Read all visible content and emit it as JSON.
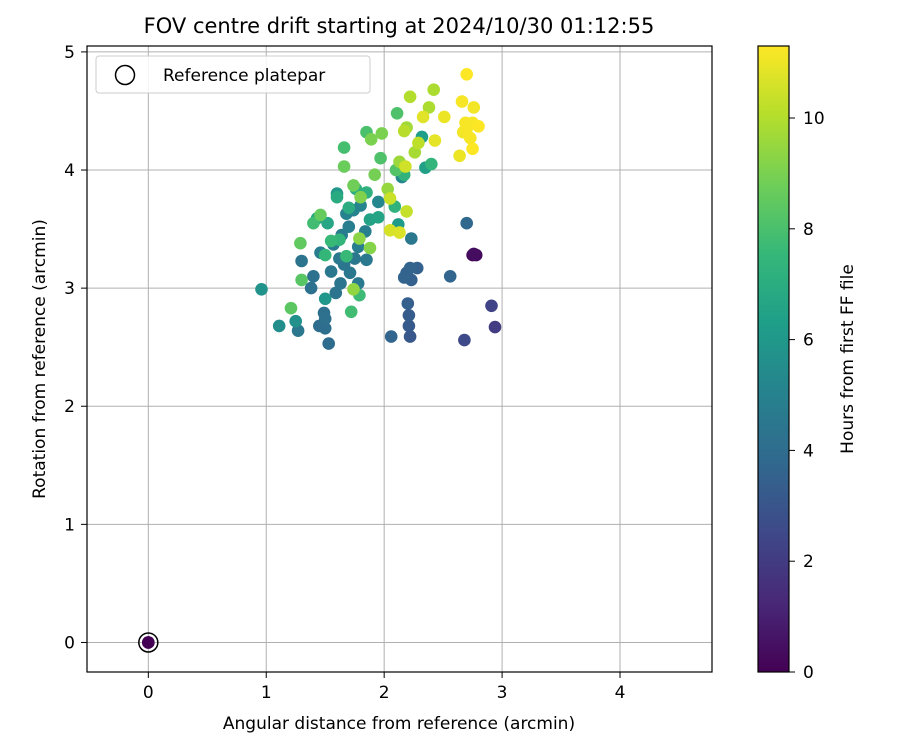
{
  "chart_data": {
    "type": "scatter",
    "title": "FOV centre drift starting at 2024/10/30 01:12:55",
    "xlabel": "Angular distance from reference (arcmin)",
    "ylabel": "Rotation from reference (arcmin)",
    "xlim": [
      -0.52,
      4.78
    ],
    "ylim": [
      -0.25,
      5.05
    ],
    "xticks": [
      0,
      1,
      2,
      3,
      4
    ],
    "yticks": [
      0,
      1,
      2,
      3,
      4,
      5
    ],
    "grid": true,
    "legend": {
      "position": "top-left",
      "entries": [
        "Reference platepar"
      ]
    },
    "colorbar": {
      "label": "Hours from first FF file",
      "colormap": "viridis",
      "range": [
        0,
        11.3
      ],
      "ticks": [
        0,
        2,
        4,
        6,
        8,
        10
      ],
      "colors": [
        "#440154",
        "#482878",
        "#3e4989",
        "#31688e",
        "#26828e",
        "#1f9e89",
        "#35b779",
        "#6ece58",
        "#b5de2b",
        "#fde725"
      ]
    },
    "reference_point": {
      "x": 0,
      "y": 0,
      "t": 0
    },
    "series": [
      {
        "points": [
          [
            0,
            0,
            0
          ],
          [
            2.75,
            3.28,
            0.2
          ],
          [
            2.78,
            3.28,
            0.3
          ],
          [
            2.76,
            3.29,
            0.4
          ],
          [
            2.94,
            2.67,
            2.0
          ],
          [
            2.91,
            2.85,
            2.3
          ],
          [
            2.68,
            2.56,
            2.5
          ],
          [
            2.22,
            2.59,
            3.1
          ],
          [
            2.21,
            2.68,
            3.2
          ],
          [
            2.21,
            2.77,
            3.3
          ],
          [
            2.2,
            2.87,
            3.4
          ],
          [
            2.23,
            3.07,
            3.5
          ],
          [
            2.19,
            3.13,
            3.5
          ],
          [
            2.28,
            3.17,
            3.5
          ],
          [
            2.22,
            3.17,
            3.6
          ],
          [
            2.17,
            3.09,
            3.6
          ],
          [
            2.56,
            3.1,
            3.7
          ],
          [
            2.7,
            3.55,
            3.8
          ],
          [
            2.06,
            2.59,
            3.7
          ],
          [
            2.23,
            3.42,
            4.5
          ],
          [
            1.53,
            2.53,
            4.0
          ],
          [
            1.5,
            2.66,
            4.1
          ],
          [
            1.38,
            3.0,
            4.2
          ],
          [
            1.3,
            3.23,
            4.3
          ],
          [
            1.4,
            3.1,
            4.2
          ],
          [
            1.45,
            2.68,
            4.0
          ],
          [
            1.49,
            2.79,
            4.1
          ],
          [
            1.5,
            2.74,
            4.2
          ],
          [
            1.59,
            2.96,
            4.3
          ],
          [
            1.63,
            3.04,
            4.4
          ],
          [
            1.71,
            3.13,
            4.5
          ],
          [
            1.78,
            3.04,
            4.6
          ],
          [
            1.66,
            3.2,
            4.4
          ],
          [
            1.75,
            3.25,
            4.5
          ],
          [
            1.85,
            3.24,
            4.6
          ],
          [
            1.57,
            3.37,
            4.7
          ],
          [
            1.64,
            3.45,
            4.7
          ],
          [
            1.7,
            3.52,
            4.8
          ],
          [
            1.78,
            3.35,
            4.8
          ],
          [
            1.84,
            3.48,
            4.9
          ],
          [
            1.55,
            3.14,
            4.5
          ],
          [
            1.46,
            3.3,
            4.8
          ],
          [
            1.62,
            3.25,
            4.6
          ],
          [
            1.68,
            3.63,
            5.0
          ],
          [
            1.74,
            3.66,
            5.1
          ],
          [
            1.8,
            3.7,
            5.1
          ],
          [
            1.95,
            3.73,
            5.2
          ],
          [
            2.15,
            3.94,
            5.3
          ],
          [
            1.27,
            2.64,
            4.5
          ],
          [
            1.11,
            2.68,
            5.5
          ],
          [
            0.96,
            2.99,
            5.8
          ],
          [
            1.25,
            2.72,
            5.7
          ],
          [
            1.5,
            2.91,
            5.9
          ],
          [
            1.6,
            3.8,
            6.0
          ],
          [
            2.32,
            4.28,
            6.3
          ],
          [
            2.35,
            4.02,
            6.4
          ],
          [
            2.12,
            3.54,
            6.2
          ],
          [
            1.88,
            3.58,
            6.5
          ],
          [
            1.95,
            3.6,
            6.6
          ],
          [
            1.52,
            3.55,
            6.7
          ],
          [
            1.43,
            3.59,
            6.8
          ],
          [
            1.6,
            3.77,
            6.9
          ],
          [
            1.7,
            3.68,
            7.0
          ],
          [
            1.76,
            3.84,
            7.1
          ],
          [
            1.85,
            3.81,
            7.2
          ],
          [
            2.09,
            3.69,
            7.3
          ],
          [
            2.17,
            3.96,
            7.3
          ],
          [
            2.4,
            4.05,
            7.4
          ],
          [
            1.62,
            3.41,
            7.4
          ],
          [
            1.5,
            3.28,
            7.5
          ],
          [
            1.68,
            3.27,
            7.6
          ],
          [
            1.55,
            3.4,
            7.6
          ],
          [
            1.79,
            2.94,
            7.7
          ],
          [
            1.72,
            2.8,
            7.8
          ],
          [
            1.4,
            3.55,
            7.8
          ],
          [
            1.66,
            4.19,
            7.9
          ],
          [
            1.85,
            4.32,
            8.0
          ],
          [
            1.97,
            4.1,
            8.1
          ],
          [
            2.11,
            4.48,
            8.1
          ],
          [
            2.1,
            4.0,
            8.2
          ],
          [
            1.3,
            3.07,
            8.3
          ],
          [
            1.21,
            2.83,
            8.4
          ],
          [
            1.29,
            3.38,
            8.5
          ],
          [
            1.46,
            3.62,
            8.6
          ],
          [
            1.66,
            4.03,
            8.7
          ],
          [
            1.74,
            3.87,
            8.8
          ],
          [
            1.92,
            3.96,
            8.9
          ],
          [
            1.98,
            4.31,
            9.0
          ],
          [
            1.89,
            4.26,
            9.0
          ],
          [
            1.8,
            3.77,
            9.1
          ],
          [
            1.88,
            3.34,
            9.2
          ],
          [
            1.79,
            3.42,
            9.3
          ],
          [
            1.74,
            2.99,
            9.4
          ],
          [
            2.03,
            3.84,
            9.5
          ],
          [
            2.13,
            4.07,
            9.6
          ],
          [
            2.19,
            4.36,
            9.7
          ],
          [
            2.26,
            4.15,
            9.8
          ],
          [
            2.42,
            4.68,
            9.9
          ],
          [
            2.38,
            4.53,
            9.9
          ],
          [
            2.22,
            4.62,
            10.0
          ],
          [
            2.17,
            4.33,
            10.1
          ],
          [
            2.29,
            4.23,
            10.2
          ],
          [
            2.19,
            3.65,
            10.3
          ],
          [
            2.05,
            3.76,
            10.4
          ],
          [
            2.18,
            4.03,
            10.5
          ],
          [
            2.05,
            3.49,
            10.6
          ],
          [
            2.13,
            3.47,
            10.7
          ],
          [
            2.33,
            4.45,
            10.8
          ],
          [
            2.43,
            4.25,
            10.9
          ],
          [
            2.51,
            4.45,
            11.0
          ],
          [
            2.64,
            4.12,
            11.0
          ],
          [
            2.67,
            4.32,
            11.1
          ],
          [
            2.7,
            4.35,
            11.2
          ],
          [
            2.75,
            4.4,
            11.2
          ],
          [
            2.8,
            4.37,
            11.3
          ],
          [
            2.76,
            4.53,
            11.1
          ],
          [
            2.73,
            4.27,
            11.2
          ],
          [
            2.66,
            4.58,
            11.2
          ],
          [
            2.7,
            4.81,
            11.3
          ],
          [
            2.75,
            4.18,
            11.3
          ],
          [
            2.69,
            4.4,
            11.2
          ]
        ]
      }
    ]
  }
}
